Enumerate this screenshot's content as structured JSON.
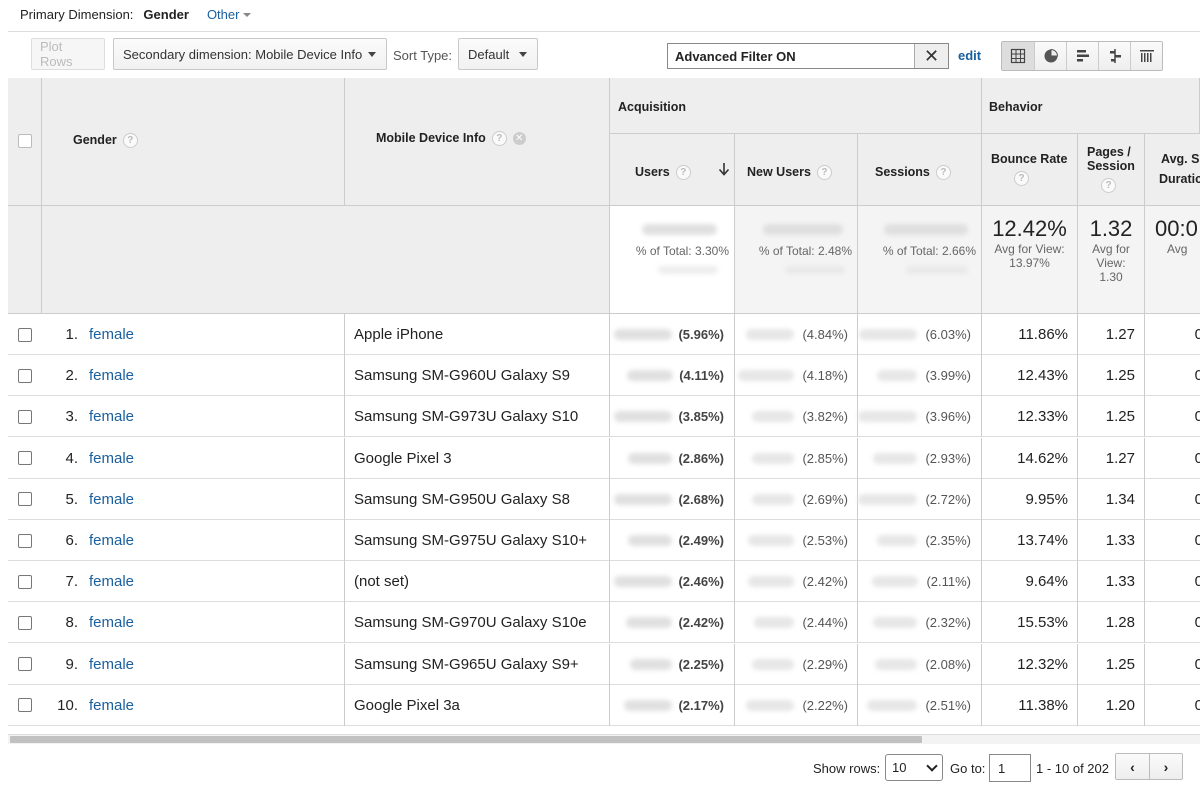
{
  "primary_dimension": {
    "label": "Primary Dimension:",
    "active": "Gender",
    "other": "Other"
  },
  "toolbar": {
    "plot_rows": "Plot Rows",
    "secondary_dimension": "Secondary dimension: Mobile Device Info",
    "sort_type_label": "Sort Type:",
    "sort_type_value": "Default",
    "filter_value": "Advanced Filter ON",
    "filter_clear": "✕",
    "edit": "edit",
    "view_icons": [
      "table-view-icon",
      "pie-view-icon",
      "performance-view-icon",
      "comparison-view-icon",
      "pivot-view-icon"
    ]
  },
  "table": {
    "groups": {
      "acquisition": "Acquisition",
      "behavior": "Behavior"
    },
    "columns": {
      "gender": "Gender",
      "device": "Mobile Device Info",
      "users": "Users",
      "new_users": "New Users",
      "sessions": "Sessions",
      "bounce_rate": "Bounce Rate",
      "pages_session_1": "Pages /",
      "pages_session_2": "Session",
      "avg_duration_1": "Avg. S",
      "avg_duration_2": "Duratic"
    },
    "help": "?",
    "summary": {
      "users_pct": "% of Total: 3.30%",
      "new_users_pct": "% of Total: 2.48%",
      "sessions_pct": "% of Total: 2.66%",
      "bounce_big": "12.42%",
      "bounce_sub1": "Avg for View:",
      "bounce_sub2": "13.97%",
      "pages_big": "1.32",
      "pages_sub1": "Avg for",
      "pages_sub2": "View:",
      "pages_sub3": "1.30",
      "dur_big": "00:0",
      "dur_sub": "Avg"
    },
    "rows": [
      {
        "idx": "1.",
        "gender": "female",
        "device": "Apple iPhone",
        "users_pct": "(5.96%)",
        "new_pct": "(4.84%)",
        "sess_pct": "(6.03%)",
        "bounce": "11.86%",
        "pages": "1.27",
        "dur": "0"
      },
      {
        "idx": "2.",
        "gender": "female",
        "device": "Samsung SM-G960U Galaxy S9",
        "users_pct": "(4.11%)",
        "new_pct": "(4.18%)",
        "sess_pct": "(3.99%)",
        "bounce": "12.43%",
        "pages": "1.25",
        "dur": "0"
      },
      {
        "idx": "3.",
        "gender": "female",
        "device": "Samsung SM-G973U Galaxy S10",
        "users_pct": "(3.85%)",
        "new_pct": "(3.82%)",
        "sess_pct": "(3.96%)",
        "bounce": "12.33%",
        "pages": "1.25",
        "dur": "0"
      },
      {
        "idx": "4.",
        "gender": "female",
        "device": "Google Pixel 3",
        "users_pct": "(2.86%)",
        "new_pct": "(2.85%)",
        "sess_pct": "(2.93%)",
        "bounce": "14.62%",
        "pages": "1.27",
        "dur": "0"
      },
      {
        "idx": "5.",
        "gender": "female",
        "device": "Samsung SM-G950U Galaxy S8",
        "users_pct": "(2.68%)",
        "new_pct": "(2.69%)",
        "sess_pct": "(2.72%)",
        "bounce": "9.95%",
        "pages": "1.34",
        "dur": "0"
      },
      {
        "idx": "6.",
        "gender": "female",
        "device": "Samsung SM-G975U Galaxy S10+",
        "users_pct": "(2.49%)",
        "new_pct": "(2.53%)",
        "sess_pct": "(2.35%)",
        "bounce": "13.74%",
        "pages": "1.33",
        "dur": "0"
      },
      {
        "idx": "7.",
        "gender": "female",
        "device": "(not set)",
        "users_pct": "(2.46%)",
        "new_pct": "(2.42%)",
        "sess_pct": "(2.11%)",
        "bounce": "9.64%",
        "pages": "1.33",
        "dur": "0"
      },
      {
        "idx": "8.",
        "gender": "female",
        "device": "Samsung SM-G970U Galaxy S10e",
        "users_pct": "(2.42%)",
        "new_pct": "(2.44%)",
        "sess_pct": "(2.32%)",
        "bounce": "15.53%",
        "pages": "1.28",
        "dur": "0"
      },
      {
        "idx": "9.",
        "gender": "female",
        "device": "Samsung SM-G965U Galaxy S9+",
        "users_pct": "(2.25%)",
        "new_pct": "(2.29%)",
        "sess_pct": "(2.08%)",
        "bounce": "12.32%",
        "pages": "1.25",
        "dur": "0"
      },
      {
        "idx": "10.",
        "gender": "female",
        "device": "Google Pixel 3a",
        "users_pct": "(2.17%)",
        "new_pct": "(2.22%)",
        "sess_pct": "(2.51%)",
        "bounce": "11.38%",
        "pages": "1.20",
        "dur": "0"
      }
    ]
  },
  "pager": {
    "show_rows_label": "Show rows:",
    "show_rows_value": "10",
    "goto_label": "Go to:",
    "goto_value": "1",
    "range": "1 - 10 of 202",
    "prev": "‹",
    "next": "›"
  }
}
